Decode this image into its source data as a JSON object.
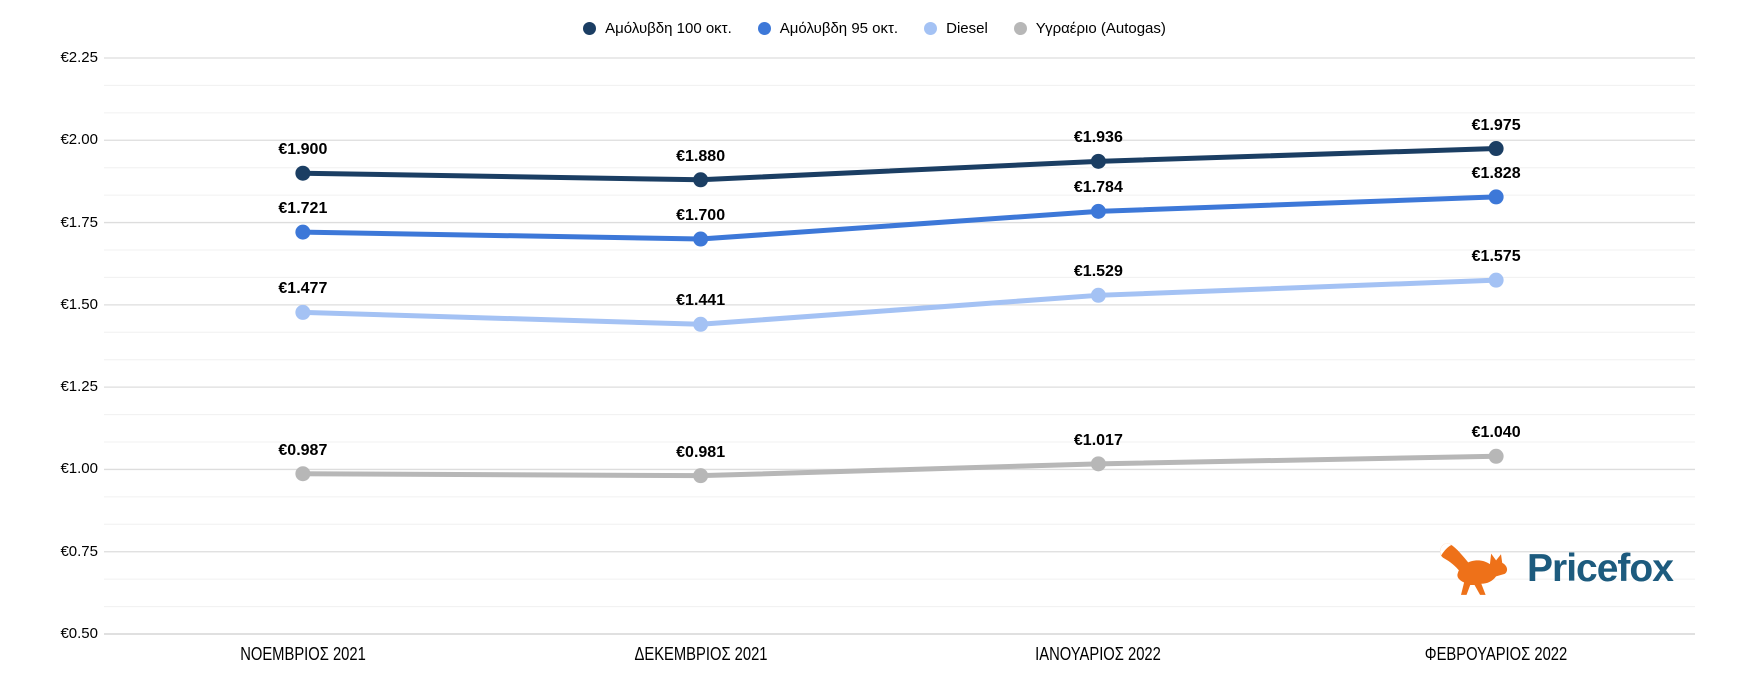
{
  "chart_data": {
    "type": "line",
    "title": "",
    "categories": [
      "ΝΟΕΜΒΡΙΟΣ 2021",
      "ΔΕΚΕΜΒΡΙΟΣ 2021",
      "ΙΑΝΟΥΑΡΙΟΣ 2022",
      "ΦΕΒΡΟΥΑΡΙΟΣ 2022"
    ],
    "series": [
      {
        "name": "Αμόλυβδη 100 οκτ.",
        "color": "#1b3e63",
        "values": [
          1.9,
          1.88,
          1.936,
          1.975
        ]
      },
      {
        "name": "Αμόλυβδη 95 οκτ.",
        "color": "#3d78d8",
        "values": [
          1.721,
          1.7,
          1.784,
          1.828
        ]
      },
      {
        "name": "Diesel",
        "color": "#a4c2f4",
        "values": [
          1.477,
          1.441,
          1.529,
          1.575
        ]
      },
      {
        "name": "Υγραέριο (Autogas)",
        "color": "#b7b7b7",
        "values": [
          0.987,
          0.981,
          1.017,
          1.04
        ]
      }
    ],
    "ylim": [
      0.5,
      2.25
    ],
    "y_tick_step": 0.25,
    "minor_divisions_per_major": 3,
    "currency_prefix": "€",
    "value_label_decimals": 3,
    "axis_tick_decimals": 2,
    "axis_tick_labels": [
      "€0.50",
      "€0.75",
      "€1.00",
      "€1.25",
      "€1.50",
      "€1.75",
      "€2.00",
      "€2.25"
    ],
    "legend_position": "top",
    "grid": true,
    "data_labels_visible": true
  },
  "colors": {
    "grid_minor": "#f0f0f0",
    "grid_major": "#dddddd",
    "axis_baseline": "#cdcdcd",
    "label_text": "#000000"
  },
  "logo": {
    "label": "Pricefox",
    "wordmark_color": "#1d5b7e",
    "fox_color": "#ee7119"
  }
}
